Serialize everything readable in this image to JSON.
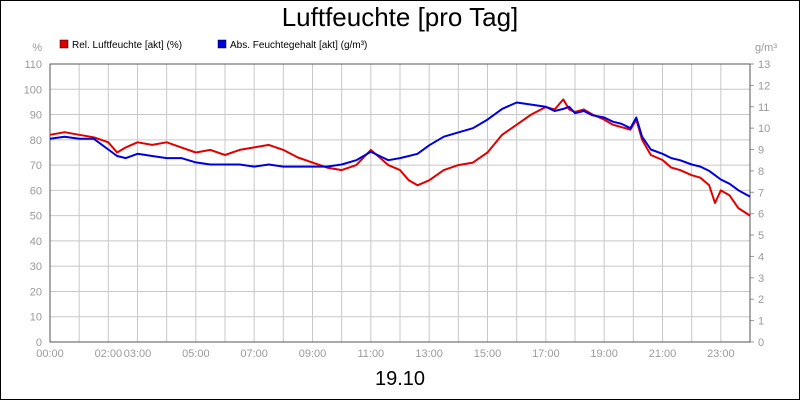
{
  "chart_data": {
    "type": "line",
    "title": "Luftfeuchte [pro Tag]",
    "subtitle": "19.10",
    "ylabel_left": "%",
    "ylabel_right": "g/m³",
    "ylim_left": [
      0,
      110
    ],
    "ylim_right": [
      0,
      13
    ],
    "yticks_left": [
      0,
      10,
      20,
      30,
      40,
      50,
      60,
      70,
      80,
      90,
      100,
      110
    ],
    "yticks_right": [
      0,
      1,
      2,
      3,
      4,
      5,
      6,
      7,
      8,
      9,
      10,
      11,
      12,
      13
    ],
    "xlim": [
      0,
      24
    ],
    "xticks": [
      {
        "x": 0,
        "label": "00:00"
      },
      {
        "x": 2,
        "label": "02:00"
      },
      {
        "x": 3,
        "label": "03:00"
      },
      {
        "x": 5,
        "label": "05:00"
      },
      {
        "x": 7,
        "label": "07:00"
      },
      {
        "x": 9,
        "label": "09:00"
      },
      {
        "x": 11,
        "label": "11:00"
      },
      {
        "x": 13,
        "label": "13:00"
      },
      {
        "x": 15,
        "label": "15:00"
      },
      {
        "x": 17,
        "label": "17:00"
      },
      {
        "x": 19,
        "label": "19:00"
      },
      {
        "x": 21,
        "label": "21:00"
      },
      {
        "x": 23,
        "label": "23:00"
      }
    ],
    "grid": true,
    "legend_position": "top-left",
    "series": [
      {
        "name": "Rel. Luftfeuchte [akt] (%)",
        "color": "#e00000",
        "axis": "left",
        "x": [
          0,
          0.5,
          1,
          1.5,
          2,
          2.3,
          2.6,
          3,
          3.5,
          4,
          4.5,
          5,
          5.5,
          6,
          6.5,
          7,
          7.5,
          8,
          8.5,
          9,
          9.5,
          10,
          10.5,
          11,
          11.3,
          11.6,
          12,
          12.3,
          12.6,
          13,
          13.5,
          14,
          14.5,
          15,
          15.5,
          16,
          16.5,
          17,
          17.3,
          17.6,
          17.8,
          18,
          18.3,
          18.6,
          19,
          19.3,
          19.6,
          19.9,
          20.1,
          20.3,
          20.6,
          21,
          21.3,
          21.6,
          22,
          22.3,
          22.6,
          22.8,
          23,
          23.3,
          23.6,
          24
        ],
        "y": [
          82,
          83,
          82,
          81,
          79,
          75,
          77,
          79,
          78,
          79,
          77,
          75,
          76,
          74,
          76,
          77,
          78,
          76,
          73,
          71,
          69,
          68,
          70,
          76,
          73,
          70,
          68,
          64,
          62,
          64,
          68,
          70,
          71,
          75,
          82,
          86,
          90,
          93,
          92,
          96,
          92,
          91,
          92,
          90,
          88,
          86,
          85,
          84,
          88,
          80,
          74,
          72,
          69,
          68,
          66,
          65,
          62,
          55,
          60,
          58,
          53,
          50
        ]
      },
      {
        "name": "Abs. Feuchtegehalt [akt] (g/m³)",
        "color": "#0000dd",
        "axis": "right",
        "x": [
          0,
          0.5,
          1,
          1.5,
          2,
          2.3,
          2.6,
          3,
          3.5,
          4,
          4.5,
          5,
          5.5,
          6,
          6.5,
          7,
          7.5,
          8,
          8.5,
          9,
          9.5,
          10,
          10.5,
          11,
          11.3,
          11.6,
          12,
          12.3,
          12.6,
          13,
          13.5,
          14,
          14.5,
          15,
          15.5,
          16,
          16.5,
          17,
          17.3,
          17.6,
          17.8,
          18,
          18.3,
          18.6,
          19,
          19.3,
          19.6,
          19.9,
          20.1,
          20.3,
          20.6,
          21,
          21.3,
          21.6,
          22,
          22.3,
          22.6,
          22.8,
          23,
          23.3,
          23.6,
          24
        ],
        "y": [
          9.5,
          9.6,
          9.5,
          9.5,
          9.0,
          8.7,
          8.6,
          8.8,
          8.7,
          8.6,
          8.6,
          8.4,
          8.3,
          8.3,
          8.3,
          8.2,
          8.3,
          8.2,
          8.2,
          8.2,
          8.2,
          8.3,
          8.5,
          8.9,
          8.7,
          8.5,
          8.6,
          8.7,
          8.8,
          9.2,
          9.6,
          9.8,
          10.0,
          10.4,
          10.9,
          11.2,
          11.1,
          11.0,
          10.8,
          10.9,
          11.0,
          10.7,
          10.8,
          10.6,
          10.5,
          10.3,
          10.2,
          10.0,
          10.5,
          9.6,
          9.0,
          8.8,
          8.6,
          8.5,
          8.3,
          8.2,
          8.0,
          7.8,
          7.6,
          7.4,
          7.1,
          6.8
        ]
      }
    ]
  }
}
